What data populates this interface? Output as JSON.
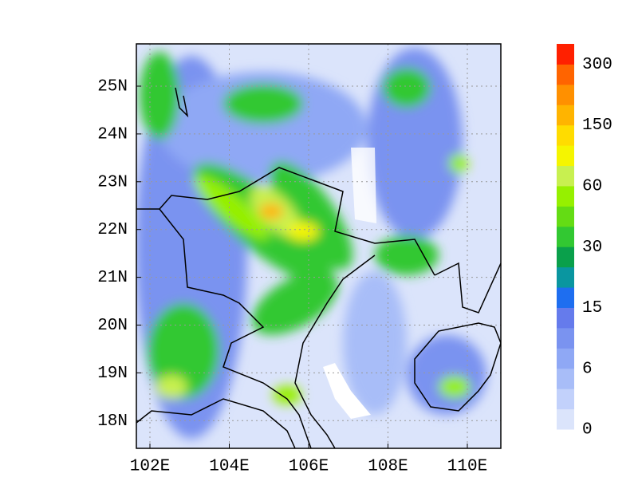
{
  "map": {
    "lon_ticks": [
      "102E",
      "104E",
      "106E",
      "108E",
      "110E"
    ],
    "lat_ticks": [
      "25N",
      "24N",
      "23N",
      "22N",
      "21N",
      "20N",
      "19N",
      "18N"
    ],
    "colorbar": {
      "colors": [
        "#dbe4fb",
        "#c2d1fb",
        "#a8bdf8",
        "#8fa8f5",
        "#7a93f0",
        "#657bec",
        "#1e6ef0",
        "#0a96a0",
        "#0aa04b",
        "#32c832",
        "#64dc14",
        "#96f000",
        "#c8f050",
        "#f5f500",
        "#ffdc00",
        "#ffb400",
        "#ff9000",
        "#ff6400",
        "#ff2000"
      ],
      "labels": [
        "0",
        "6",
        "15",
        "30",
        "60",
        "150",
        "300"
      ]
    }
  }
}
